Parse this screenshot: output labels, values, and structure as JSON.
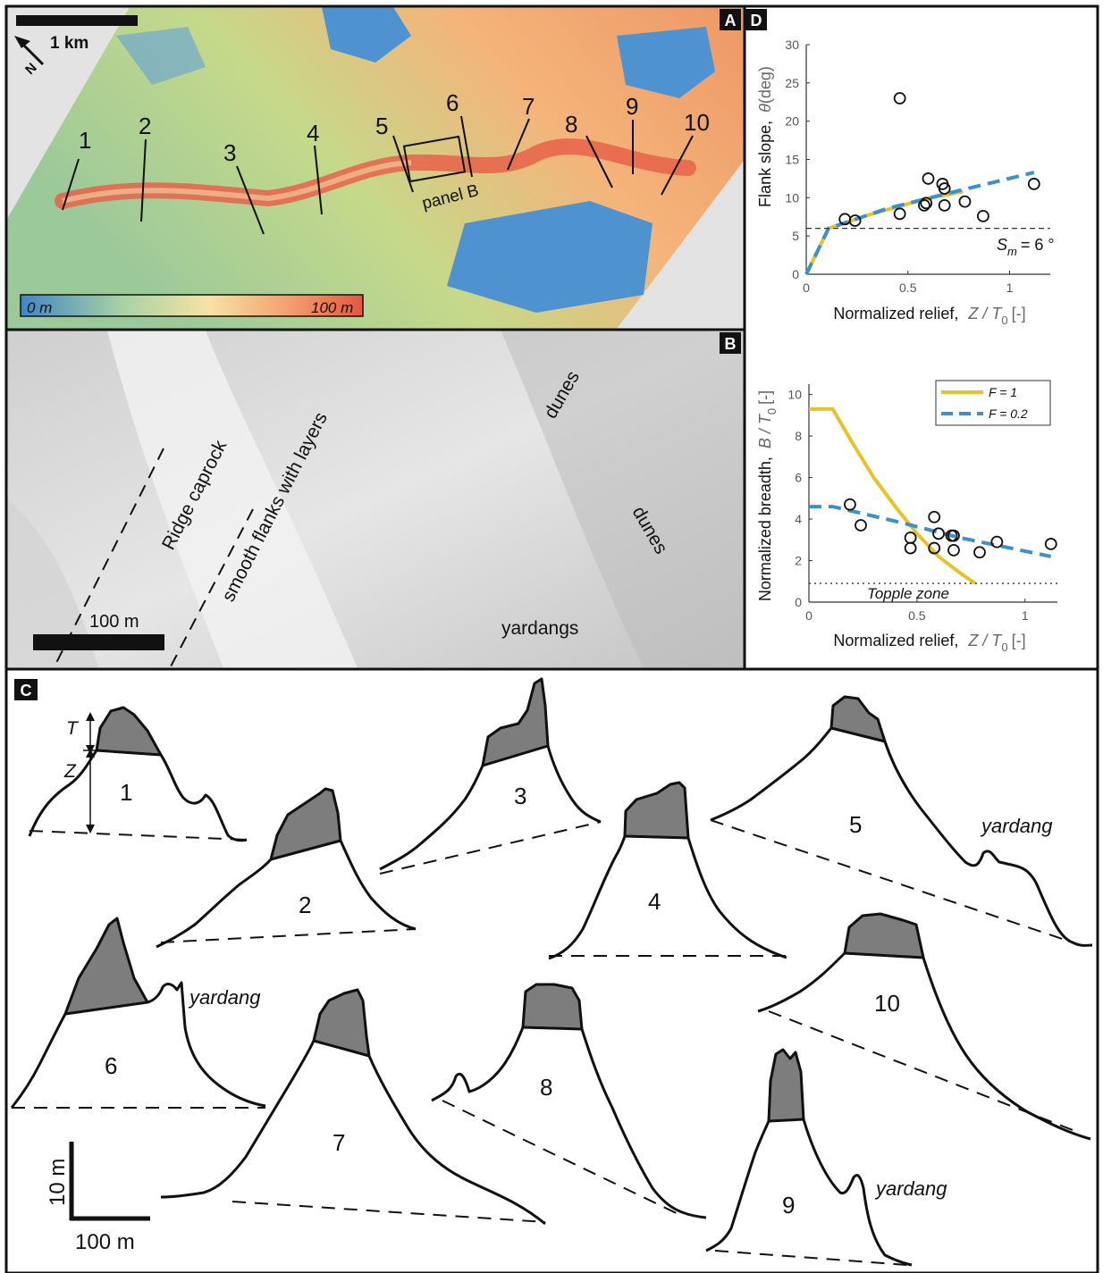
{
  "panels": {
    "a": "A",
    "b": "B",
    "c": "C",
    "d": "D"
  },
  "panel_a": {
    "scale_bar": "1 km",
    "north": "N",
    "transect_labels": [
      "1",
      "2",
      "3",
      "4",
      "5",
      "6",
      "7",
      "8",
      "9",
      "10"
    ],
    "inset_label": "panel B",
    "colorbar_min": "0 m",
    "colorbar_max": "100 m"
  },
  "panel_b": {
    "scale_bar": "100 m",
    "labels": {
      "ridge_caprock": "Ridge caprock",
      "smooth_flanks": "smooth flanks with layers",
      "dunes_top": "dunes",
      "dunes_right": "dunes",
      "yardangs": "yardangs"
    }
  },
  "panel_c": {
    "profile_labels": [
      "1",
      "2",
      "3",
      "4",
      "5",
      "6",
      "7",
      "8",
      "9",
      "10"
    ],
    "yardang_label": "yardang",
    "t_label": "T",
    "z_label": "Z",
    "scale_vertical": "10 m",
    "scale_horizontal": "100 m",
    "colors": {
      "cap_fill": "#7d7d7d",
      "line": "#111111"
    }
  },
  "chart_data": [
    {
      "type": "scatter",
      "xlabel_text": "Normalized relief,",
      "xlabel_symbol": "Z / T",
      "xlabel_sub": "0",
      "xlabel_unit": "[-]",
      "ylabel_text": "Flank slope,",
      "ylabel_symbol": "θ",
      "ylabel_unit": "(deg)",
      "xlim": [
        0,
        1.2
      ],
      "ylim": [
        0,
        30
      ],
      "xticks": [
        0,
        0.5,
        1
      ],
      "xtick_labels": [
        "0",
        "0.5",
        "1"
      ],
      "yticks": [
        0,
        5,
        10,
        15,
        20,
        25,
        30
      ],
      "ytick_labels": [
        "0",
        "5",
        "10",
        "15",
        "20",
        "25",
        "30"
      ],
      "points": [
        [
          0.19,
          7.2
        ],
        [
          0.24,
          7.0
        ],
        [
          0.46,
          23.0
        ],
        [
          0.46,
          7.9
        ],
        [
          0.58,
          9.0
        ],
        [
          0.59,
          9.3
        ],
        [
          0.6,
          12.5
        ],
        [
          0.67,
          11.8
        ],
        [
          0.68,
          11.2
        ],
        [
          0.68,
          9.0
        ],
        [
          0.78,
          9.5
        ],
        [
          0.87,
          7.6
        ],
        [
          1.12,
          11.8
        ]
      ],
      "series": [
        {
          "name": "F = 1",
          "color": "#e8c22a",
          "points": [
            [
              0,
              0
            ],
            [
              0.11,
              6.0
            ],
            [
              0.3,
              7.7
            ],
            [
              0.5,
              9.2
            ],
            [
              0.65,
              10.2
            ],
            [
              0.77,
              10.8
            ]
          ]
        },
        {
          "name": "F = 0.2",
          "color": "#3d90c8",
          "points": [
            [
              0,
              0
            ],
            [
              0.11,
              6.0
            ],
            [
              0.4,
              8.6
            ],
            [
              0.7,
              10.6
            ],
            [
              1.12,
              13.3
            ]
          ]
        }
      ],
      "reference_line": {
        "y": 6,
        "label": "S",
        "label_sub": "m",
        "label_rest": "= 6 °"
      }
    },
    {
      "type": "scatter",
      "xlabel_text": "Normalized relief,",
      "xlabel_symbol": "Z / T",
      "xlabel_sub": "0",
      "xlabel_unit": "[-]",
      "ylabel_text": "Normalized breadth,",
      "ylabel_symbol": "B / T",
      "ylabel_sub": "0",
      "ylabel_unit": "[-]",
      "xlim": [
        0,
        1.15
      ],
      "ylim": [
        0,
        10.5
      ],
      "xticks": [
        0,
        0.5,
        1
      ],
      "xtick_labels": [
        "0",
        "0.5",
        "1"
      ],
      "yticks": [
        0,
        2,
        4,
        6,
        8,
        10
      ],
      "ytick_labels": [
        "0",
        "2",
        "4",
        "6",
        "8",
        "10"
      ],
      "points": [
        [
          0.19,
          4.7
        ],
        [
          0.24,
          3.7
        ],
        [
          0.47,
          3.1
        ],
        [
          0.47,
          2.6
        ],
        [
          0.58,
          4.1
        ],
        [
          0.6,
          3.3
        ],
        [
          0.58,
          2.6
        ],
        [
          0.66,
          3.2
        ],
        [
          0.67,
          3.2
        ],
        [
          0.67,
          2.5
        ],
        [
          0.79,
          2.4
        ],
        [
          0.87,
          2.9
        ],
        [
          1.12,
          2.8
        ]
      ],
      "series": [
        {
          "name": "F = 1",
          "color": "#e8c22a",
          "points": [
            [
              0,
              9.3
            ],
            [
              0.11,
              9.3
            ],
            [
              0.2,
              7.7
            ],
            [
              0.3,
              6.0
            ],
            [
              0.4,
              4.6
            ],
            [
              0.5,
              3.3
            ],
            [
              0.6,
              2.2
            ],
            [
              0.7,
              1.4
            ],
            [
              0.77,
              0.9
            ]
          ]
        },
        {
          "name": "F = 0.2",
          "color": "#3d90c8",
          "points": [
            [
              0,
              4.6
            ],
            [
              0.11,
              4.6
            ],
            [
              0.4,
              3.9
            ],
            [
              0.7,
              3.1
            ],
            [
              1.12,
              2.2
            ]
          ]
        }
      ],
      "reference_line": {
        "y": 0.9,
        "label": "Topple zone"
      },
      "legend": "top-right"
    }
  ]
}
